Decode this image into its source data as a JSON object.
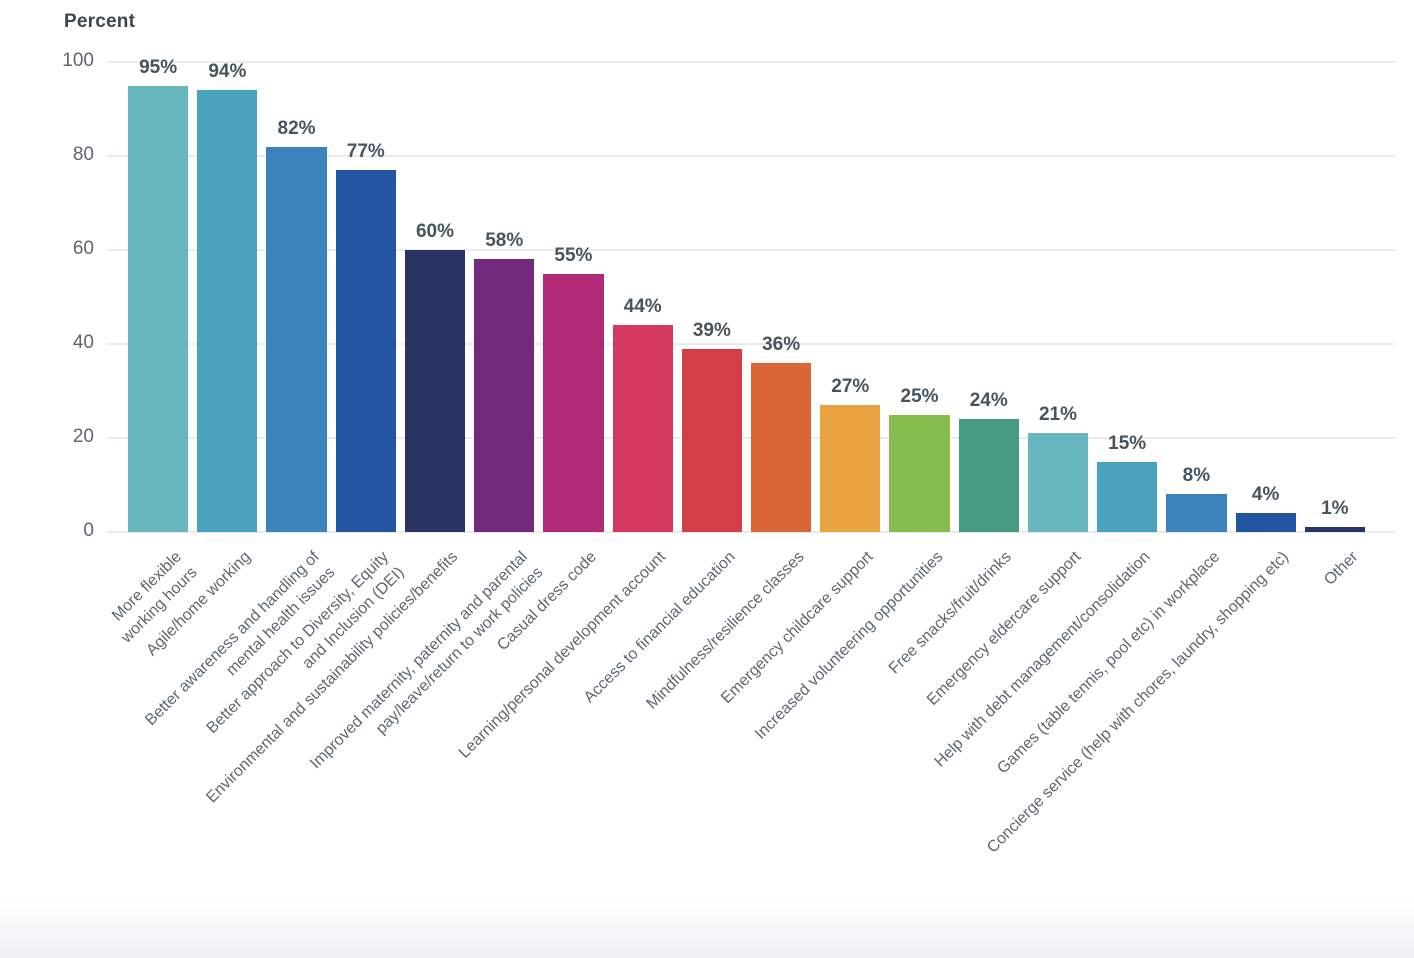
{
  "chart_title": "Percent",
  "chart_data": {
    "type": "bar",
    "title": "Percent",
    "xlabel": "",
    "ylabel": "Percent",
    "ylim": [
      0,
      100
    ],
    "y_ticks": [
      0,
      20,
      40,
      60,
      80,
      100
    ],
    "grid": true,
    "legend": false,
    "categories": [
      "More flexible working hours",
      "Agile/home working",
      "Better awareness and handling of mental health issues",
      "Better approach to Diversity, Equity and Inclusion (DEI)",
      "Environmental and sustainability policies/benefits",
      "Improved maternity, paternity and parental pay/leave/return to work policies",
      "Casual dress code",
      "Learning/personal development account",
      "Access to financial education",
      "Mindfulness/resilience classes",
      "Emergency childcare support",
      "Increased volunteering opportunities",
      "Free snacks/fruit/drinks",
      "Emergency eldercare support",
      "Help with debt management/consolidation",
      "Games (table tennis, pool etc) in workplace",
      "Concierge service (help with chores, laundry, shopping etc)",
      "Other"
    ],
    "label_lines": [
      [
        "More flexible",
        "working hours"
      ],
      [
        "Agile/home working"
      ],
      [
        "Better awareness and handling of",
        "mental health issues"
      ],
      [
        "Better approach to Diversity, Equity",
        "and Inclusion (DEI)"
      ],
      [
        "Environmental and sustainability policies/benefits"
      ],
      [
        "Improved maternity, paternity and parental",
        "pay/leave/return to work policies"
      ],
      [
        "Casual dress code"
      ],
      [
        "Learning/personal development account"
      ],
      [
        "Access to financial education"
      ],
      [
        "Mindfulness/resilience classes"
      ],
      [
        "Emergency childcare support"
      ],
      [
        "Increased volunteering opportunities"
      ],
      [
        "Free snacks/fruit/drinks"
      ],
      [
        "Emergency eldercare support"
      ],
      [
        "Help with debt management/consolidation"
      ],
      [
        "Games (table tennis, pool etc) in workplace"
      ],
      [
        "Concierge service (help with chores, laundry, shopping etc)"
      ],
      [
        "Other"
      ]
    ],
    "values": [
      95,
      94,
      82,
      77,
      60,
      58,
      55,
      44,
      39,
      36,
      27,
      25,
      24,
      21,
      15,
      8,
      4,
      1
    ],
    "value_labels": [
      "95%",
      "94%",
      "82%",
      "77%",
      "60%",
      "58%",
      "55%",
      "44%",
      "39%",
      "36%",
      "27%",
      "25%",
      "24%",
      "21%",
      "15%",
      "8%",
      "4%",
      "1%"
    ],
    "colors": [
      "#68b7be",
      "#49a3bc",
      "#3c83bd",
      "#2355a2",
      "#2a3365",
      "#722a7d",
      "#b12a78",
      "#d43760",
      "#d23f47",
      "#da6636",
      "#eaa43f",
      "#86bb4e",
      "#469a84",
      "#68b7be",
      "#49a3bc",
      "#3c83bd",
      "#2355a2",
      "#2a3365"
    ],
    "gridline_color": "#e9ebee",
    "title_color": "#3d4753",
    "tick_label_color": "#5a6773",
    "value_label_color": "#47535f",
    "category_label_color": "#5b6874"
  }
}
